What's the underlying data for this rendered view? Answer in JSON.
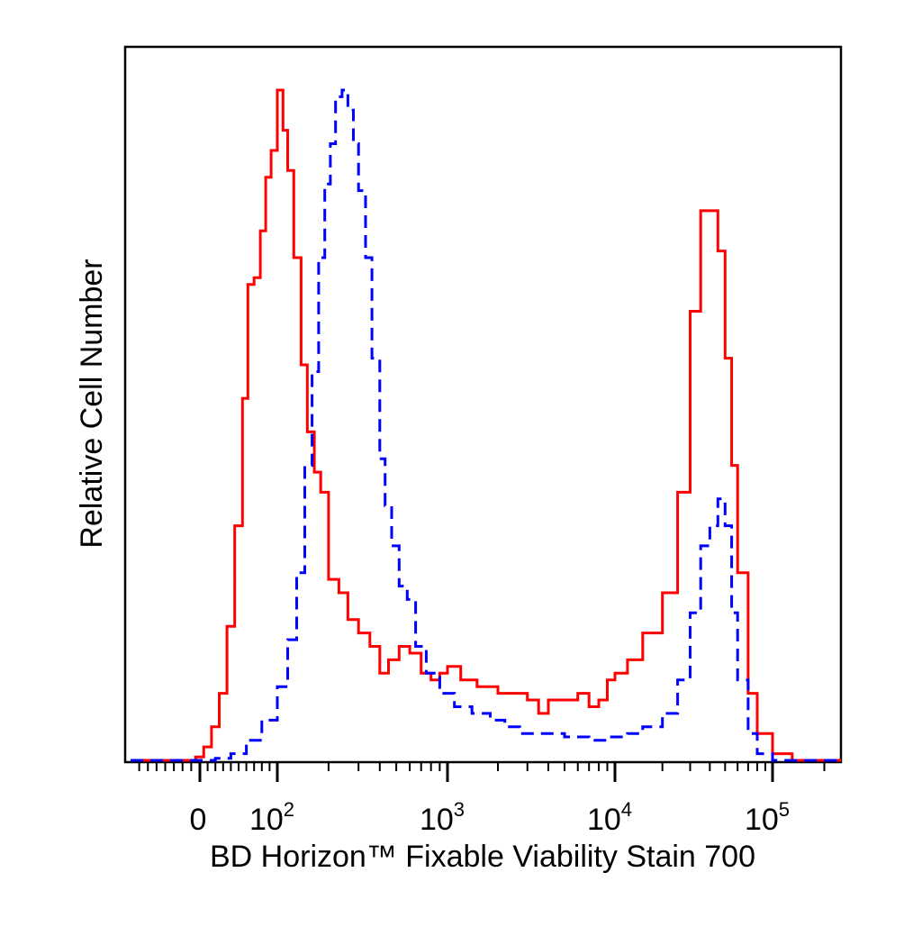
{
  "chart_data": {
    "type": "line",
    "title": "",
    "xlabel": "BD Horizon™ Fixable Viability Stain 700",
    "ylabel": "Relative Cell Number",
    "x_scale": "biexponential",
    "xlim": [
      -80,
      250000
    ],
    "ylim": [
      0,
      1
    ],
    "grid": false,
    "legend": "none",
    "x_ticks": [
      {
        "value": 0,
        "base": "0",
        "exp": ""
      },
      {
        "value": 100,
        "base": "10",
        "exp": "2"
      },
      {
        "value": 1000,
        "base": "10",
        "exp": "3"
      },
      {
        "value": 10000,
        "base": "10",
        "exp": "4"
      },
      {
        "value": 100000,
        "base": "10",
        "exp": "5"
      }
    ],
    "series": [
      {
        "color": "#ff0000",
        "line_style": "solid",
        "x": [
          -80,
          -20,
          -5,
          5,
          15,
          25,
          35,
          45,
          55,
          62,
          70,
          78,
          85,
          92,
          100,
          108,
          115,
          125,
          138,
          150,
          165,
          180,
          200,
          230,
          260,
          300,
          350,
          400,
          450,
          520,
          600,
          700,
          800,
          900,
          1000,
          1200,
          1500,
          2000,
          2500,
          3000,
          3500,
          4000,
          5000,
          6000,
          7000,
          8000,
          9000,
          10000,
          12000,
          15000,
          20000,
          25000,
          30000,
          35000,
          40000,
          45000,
          50000,
          55000,
          60000,
          70000,
          80000,
          100000,
          130000,
          250000
        ],
        "y": [
          0,
          0,
          0.005,
          0.02,
          0.05,
          0.1,
          0.2,
          0.35,
          0.54,
          0.71,
          0.72,
          0.79,
          0.87,
          0.91,
          1.0,
          0.94,
          0.88,
          0.75,
          0.59,
          0.49,
          0.43,
          0.4,
          0.27,
          0.25,
          0.21,
          0.19,
          0.17,
          0.13,
          0.15,
          0.17,
          0.16,
          0.13,
          0.12,
          0.13,
          0.14,
          0.12,
          0.11,
          0.1,
          0.1,
          0.09,
          0.07,
          0.09,
          0.09,
          0.1,
          0.08,
          0.09,
          0.12,
          0.13,
          0.15,
          0.19,
          0.25,
          0.4,
          0.67,
          0.82,
          0.82,
          0.76,
          0.6,
          0.44,
          0.28,
          0.1,
          0.04,
          0.01,
          0,
          0
        ]
      },
      {
        "color": "#0000ff",
        "line_style": "dashed",
        "x": [
          -80,
          0,
          20,
          40,
          60,
          80,
          100,
          115,
          130,
          145,
          160,
          175,
          190,
          205,
          220,
          240,
          260,
          280,
          300,
          330,
          360,
          400,
          430,
          470,
          520,
          580,
          650,
          750,
          900,
          1100,
          1400,
          1800,
          2200,
          2700,
          3500,
          5000,
          7000,
          9000,
          12000,
          15000,
          20000,
          25000,
          30000,
          35000,
          40000,
          45000,
          50000,
          55000,
          60000,
          70000,
          80000,
          100000,
          130000,
          250000
        ],
        "y": [
          0,
          0,
          0.003,
          0.01,
          0.03,
          0.06,
          0.11,
          0.18,
          0.28,
          0.44,
          0.58,
          0.75,
          0.86,
          0.92,
          0.99,
          1.0,
          0.97,
          0.92,
          0.85,
          0.75,
          0.6,
          0.45,
          0.38,
          0.32,
          0.26,
          0.24,
          0.17,
          0.13,
          0.1,
          0.08,
          0.07,
          0.06,
          0.05,
          0.04,
          0.04,
          0.035,
          0.03,
          0.035,
          0.04,
          0.05,
          0.07,
          0.12,
          0.22,
          0.32,
          0.35,
          0.39,
          0.35,
          0.22,
          0.12,
          0.04,
          0.01,
          0,
          0,
          0
        ]
      }
    ]
  }
}
